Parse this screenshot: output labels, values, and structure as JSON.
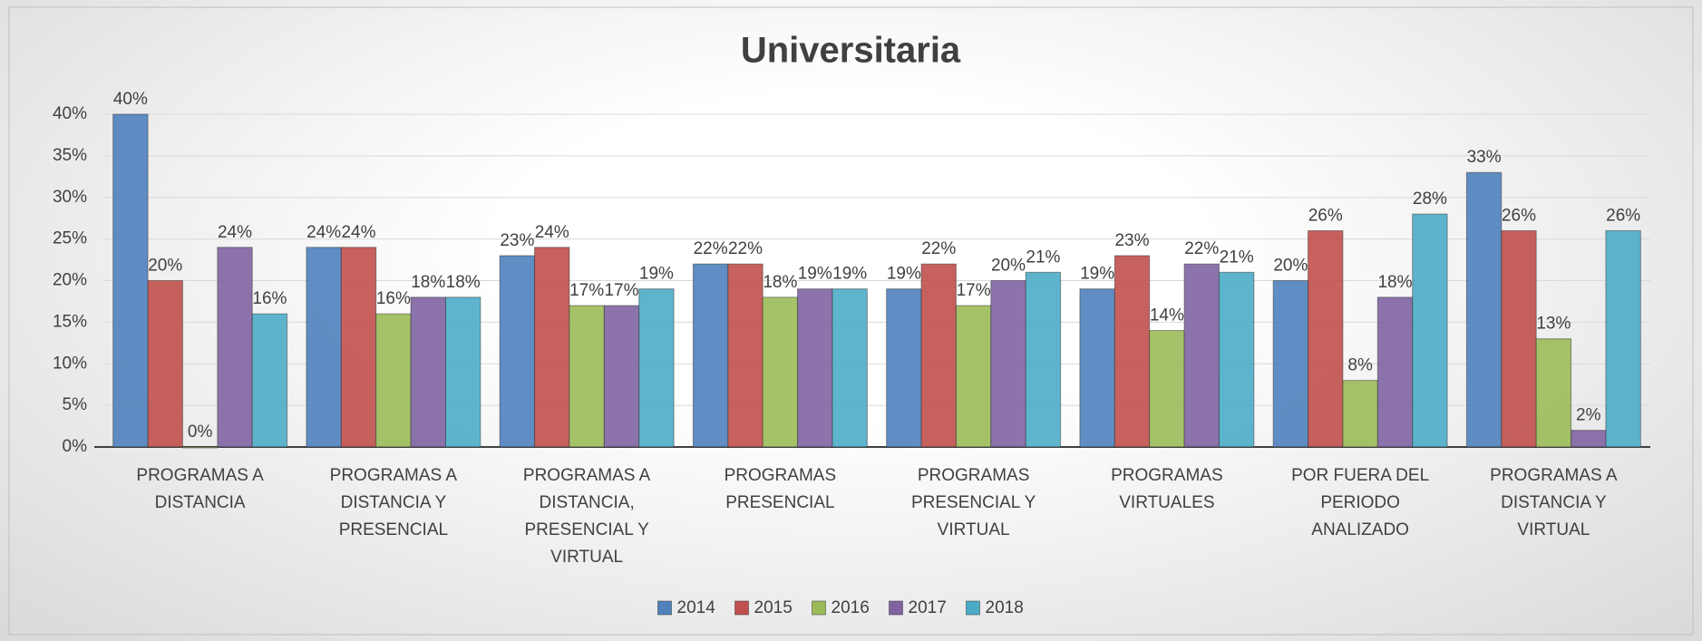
{
  "chart_data": {
    "type": "bar",
    "title": "Universitaria",
    "categories": [
      "PROGRAMAS A DISTANCIA",
      "PROGRAMAS A DISTANCIA Y PRESENCIAL",
      "PROGRAMAS A DISTANCIA, PRESENCIAL Y VIRTUAL",
      "PROGRAMAS PRESENCIAL",
      "PROGRAMAS PRESENCIAL Y VIRTUAL",
      "PROGRAMAS VIRTUALES",
      "POR FUERA DEL PERIODO ANALIZADO",
      "PROGRAMAS A DISTANCIA Y VIRTUAL"
    ],
    "series": [
      {
        "name": "2014",
        "color": "#4f81bd",
        "values": [
          40,
          24,
          23,
          22,
          19,
          19,
          20,
          33
        ],
        "value_labels": [
          "40%",
          "24%",
          "23%",
          "22%",
          "19%",
          "19%",
          "20%",
          "33%"
        ]
      },
      {
        "name": "2015",
        "color": "#c0504d",
        "values": [
          20,
          24,
          24,
          22,
          22,
          23,
          26,
          26
        ],
        "value_labels": [
          "20%",
          "24%",
          "24%",
          "22%",
          "22%",
          "23%",
          "26%",
          "26%"
        ]
      },
      {
        "name": "2016",
        "color": "#9bbb59",
        "values": [
          0,
          16,
          17,
          18,
          17,
          14,
          8,
          13
        ],
        "value_labels": [
          "0%",
          "16%",
          "17%",
          "18%",
          "17%",
          "14%",
          "8%",
          "13%"
        ]
      },
      {
        "name": "2017",
        "color": "#8064a2",
        "values": [
          24,
          18,
          17,
          19,
          20,
          22,
          18,
          2
        ],
        "value_labels": [
          "24%",
          "18%",
          "17%",
          "19%",
          "20%",
          "22%",
          "18%",
          "2%"
        ]
      },
      {
        "name": "2018",
        "color": "#4bacc6",
        "values": [
          16,
          18,
          19,
          19,
          21,
          21,
          28,
          26
        ],
        "value_labels": [
          "16%",
          "18%",
          "19%",
          "19%",
          "21%",
          "21%",
          "28%",
          "26%"
        ]
      }
    ],
    "ylim": [
      0,
      40
    ],
    "yticks": [
      {
        "value": 0,
        "label": "0%"
      },
      {
        "value": 5,
        "label": "5%"
      },
      {
        "value": 10,
        "label": "10%"
      },
      {
        "value": 15,
        "label": "15%"
      },
      {
        "value": 20,
        "label": "20%"
      },
      {
        "value": 25,
        "label": "25%"
      },
      {
        "value": 30,
        "label": "30%"
      },
      {
        "value": 35,
        "label": "35%"
      },
      {
        "value": 40,
        "label": "40%"
      }
    ],
    "grid": true,
    "legend": "bottom"
  }
}
